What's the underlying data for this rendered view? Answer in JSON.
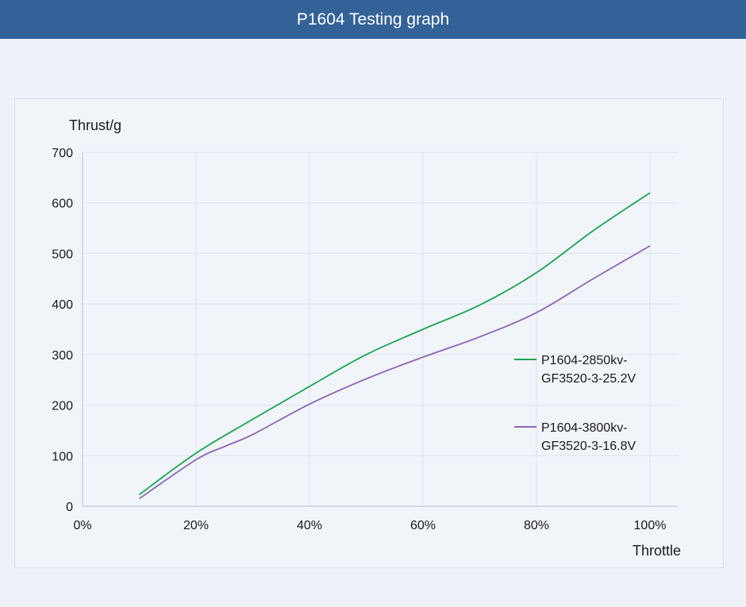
{
  "header": {
    "title": "P1604 Testing graph"
  },
  "colors": {
    "header_bg": "#336298",
    "series1": "#1aa653",
    "series2": "#8a66b3",
    "grid": "#dde2ea"
  },
  "chart_data": {
    "type": "line",
    "title": "P1604 Testing graph",
    "xlabel": "Throttle",
    "ylabel": "Thrust/g",
    "xlim": [
      0,
      100
    ],
    "ylim": [
      0,
      700
    ],
    "x_ticks": [
      0,
      20,
      40,
      60,
      80,
      100
    ],
    "x_tick_labels": [
      "0%",
      "20%",
      "40%",
      "60%",
      "80%",
      "100%"
    ],
    "y_ticks": [
      0,
      100,
      200,
      300,
      400,
      500,
      600,
      700
    ],
    "y_tick_labels": [
      "0",
      "100",
      "200",
      "300",
      "400",
      "500",
      "600",
      "700"
    ],
    "grid": true,
    "legend_position": "right-middle",
    "series": [
      {
        "name_line1": "P1604-2850kv-",
        "name_line2": "GF3520-3-25.2V",
        "color": "#1aa653",
        "x": [
          10,
          20,
          30,
          40,
          50,
          60,
          70,
          80,
          90,
          100
        ],
        "values": [
          23,
          105,
          172,
          237,
          300,
          350,
          398,
          462,
          545,
          620
        ]
      },
      {
        "name_line1": "P1604-3800kv-",
        "name_line2": "GF3520-3-16.8V",
        "color": "#8a66b3",
        "x": [
          10,
          20,
          25,
          30,
          40,
          50,
          60,
          70,
          80,
          90,
          100
        ],
        "values": [
          15,
          92,
          118,
          142,
          202,
          252,
          295,
          335,
          383,
          450,
          515
        ]
      }
    ]
  }
}
